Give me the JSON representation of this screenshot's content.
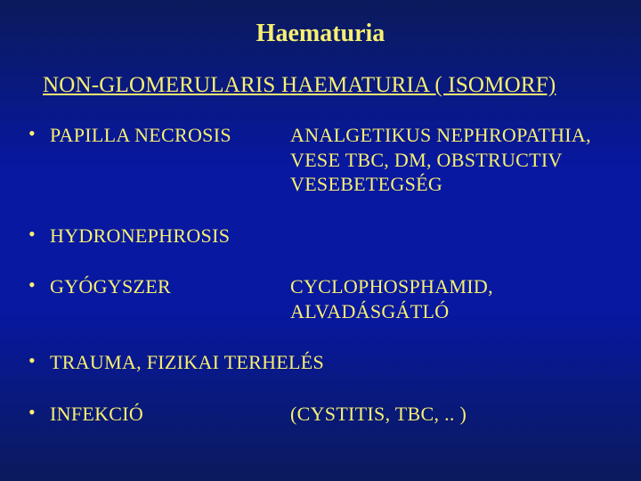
{
  "slide": {
    "title": "Haematuria",
    "subtitle": "NON-GLOMERULARIS HAEMATURIA ( ISOMORF)",
    "rows": [
      {
        "term": " PAPILLA NECROSIS",
        "desc": "ANALGETIKUS NEPHROPATHIA, VESE TBC, DM, OBSTRUCTIV VESEBETEGSÉG"
      },
      {
        "term": "HYDRONEPHROSIS",
        "desc": ""
      },
      {
        "term": "GYÓGYSZER",
        "desc": "CYCLOPHOSPHAMID, ALVADÁSGÁTLÓ"
      },
      {
        "term": "TRAUMA, FIZIKAI TERHELÉS",
        "desc": ""
      },
      {
        "term": "INFEKCIÓ",
        "desc": "(CYSTITIS, TBC, .. )"
      }
    ],
    "colors": {
      "text": "#f8f070",
      "bg_top": "#0a1a5c",
      "bg_mid": "#0818a0"
    },
    "font": "Georgia / Times New Roman",
    "title_fontsize": 28,
    "subtitle_fontsize": 25,
    "body_fontsize": 22
  }
}
